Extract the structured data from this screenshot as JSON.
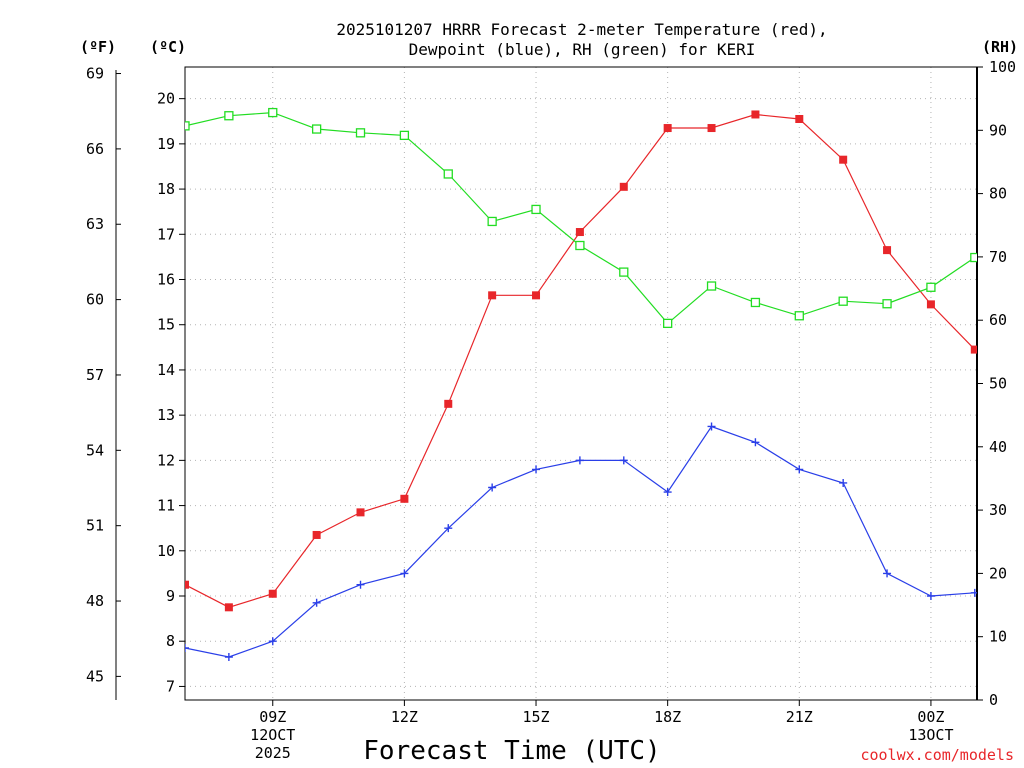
{
  "chart_data": {
    "type": "line",
    "title_lines": [
      "2025101207 HRRR Forecast 2-meter Temperature (red),",
      "Dewpoint (blue), RH (green) for KERI"
    ],
    "xlabel": "Forecast Time (UTC)",
    "credit": "coolwx.com/models",
    "unit_labels": {
      "fahrenheit": "(ºF)",
      "celsius": "(ºC)",
      "rh": "(RH)"
    },
    "x_range_hours": [
      7,
      25.05
    ],
    "x_tick_hours": [
      9,
      12,
      15,
      18,
      21,
      24
    ],
    "x_tick_labels": [
      [
        "09Z",
        "12OCT",
        "2025"
      ],
      [
        "12Z"
      ],
      [
        "15Z"
      ],
      [
        "18Z"
      ],
      [
        "21Z"
      ],
      [
        "00Z",
        "13OCT"
      ]
    ],
    "celsius_axis": {
      "range": [
        6.7,
        20.7
      ],
      "ticks": [
        7,
        8,
        9,
        10,
        11,
        12,
        13,
        14,
        15,
        16,
        17,
        18,
        19,
        20
      ]
    },
    "fahrenheit_axis": {
      "ticks": [
        45,
        48,
        51,
        54,
        57,
        60,
        63,
        66,
        69
      ]
    },
    "rh_axis": {
      "range": [
        0,
        100
      ],
      "ticks": [
        0,
        10,
        20,
        30,
        40,
        50,
        60,
        70,
        80,
        90,
        100
      ]
    },
    "forecast_hours": [
      7,
      8,
      9,
      10,
      11,
      12,
      13,
      14,
      15,
      16,
      17,
      18,
      19,
      20,
      21,
      22,
      23,
      24,
      25
    ],
    "series": [
      {
        "name": "2-meter Temperature",
        "axis": "celsius",
        "color": "#e8262a",
        "marker": "filled-square",
        "values": [
          9.25,
          8.75,
          9.05,
          10.35,
          10.85,
          11.15,
          13.25,
          15.65,
          15.65,
          17.05,
          18.05,
          19.35,
          19.35,
          19.65,
          19.55,
          18.65,
          16.65,
          15.45,
          14.45
        ]
      },
      {
        "name": "Dewpoint",
        "axis": "celsius",
        "color": "#2a3fe8",
        "marker": "plus",
        "values": [
          7.85,
          7.65,
          8.0,
          8.85,
          9.25,
          9.5,
          10.5,
          11.4,
          11.8,
          12.0,
          12.0,
          11.3,
          12.75,
          12.4,
          11.8,
          11.5,
          9.5,
          9.0,
          9.07
        ]
      },
      {
        "name": "RH",
        "axis": "rh",
        "color": "#22dd22",
        "marker": "open-square",
        "values": [
          90.7,
          92.3,
          92.8,
          90.2,
          89.6,
          89.2,
          83.1,
          75.6,
          77.5,
          71.8,
          67.6,
          59.5,
          65.4,
          62.8,
          60.7,
          63.0,
          62.6,
          65.2,
          69.9
        ]
      }
    ]
  }
}
